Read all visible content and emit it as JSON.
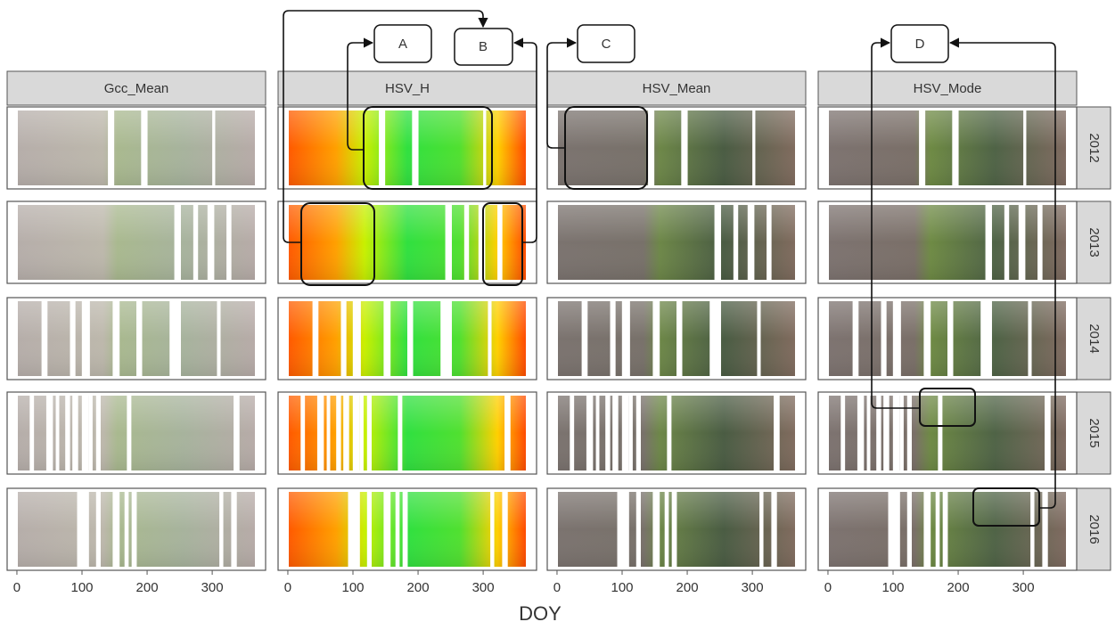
{
  "chart_data": {
    "type": "facet-image",
    "columns": [
      "Gcc_Mean",
      "HSV_H",
      "HSV_Mean",
      "HSV_Mode"
    ],
    "rows": [
      "2012",
      "2013",
      "2014",
      "2015",
      "2016"
    ],
    "xlim": [
      -15,
      382
    ],
    "xticks": [
      0,
      100,
      200,
      300
    ],
    "xlabel": "DOY",
    "annotations": [
      "A",
      "B",
      "C",
      "D"
    ]
  }
}
